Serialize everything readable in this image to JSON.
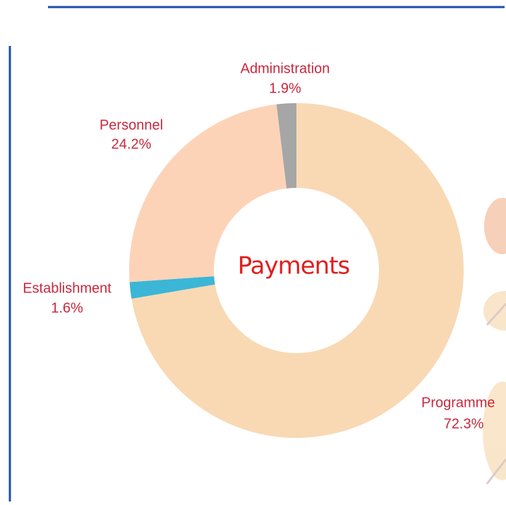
{
  "chart_data": {
    "type": "donut",
    "title": "Payments",
    "categories": [
      "Programme",
      "Establishment",
      "Personnel",
      "Administration"
    ],
    "values": [
      72.3,
      1.6,
      24.2,
      1.9
    ],
    "value_labels": [
      "72.3%",
      "1.6%",
      "24.2%",
      "1.9%"
    ],
    "colors": [
      "#f8d9b4",
      "#3bb6d6",
      "#fdd3b8",
      "#a6a6a6"
    ]
  }
}
